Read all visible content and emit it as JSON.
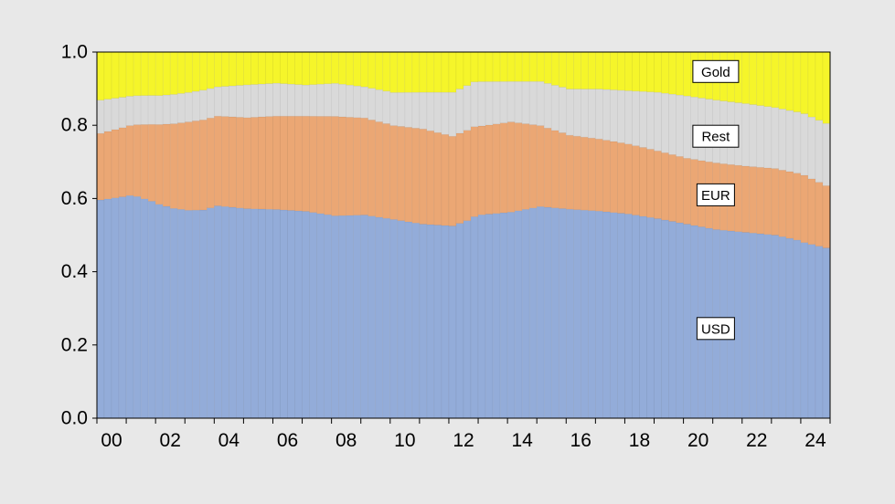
{
  "chart_data": {
    "type": "area",
    "stacking": "stacked",
    "style": "stacked-bars",
    "x_unit": "quarter",
    "x_start": "2000Q1",
    "x_end": "2024Q4",
    "ylim": [
      0,
      1
    ],
    "yticks": [
      {
        "value": 0.0,
        "label": "0.0"
      },
      {
        "value": 0.2,
        "label": "0.2"
      },
      {
        "value": 0.4,
        "label": "0.4"
      },
      {
        "value": 0.6,
        "label": "0.6"
      },
      {
        "value": 0.8,
        "label": "0.8"
      },
      {
        "value": 1.0,
        "label": "1.0"
      }
    ],
    "xticks": [
      {
        "year": 2000,
        "label": "00"
      },
      {
        "year": 2002,
        "label": "02"
      },
      {
        "year": 2004,
        "label": "04"
      },
      {
        "year": 2006,
        "label": "06"
      },
      {
        "year": 2008,
        "label": "08"
      },
      {
        "year": 2010,
        "label": "10"
      },
      {
        "year": 2012,
        "label": "12"
      },
      {
        "year": 2014,
        "label": "14"
      },
      {
        "year": 2016,
        "label": "16"
      },
      {
        "year": 2018,
        "label": "18"
      },
      {
        "year": 2020,
        "label": "20"
      },
      {
        "year": 2022,
        "label": "22"
      },
      {
        "year": 2024,
        "label": "24"
      }
    ],
    "grid": false,
    "legend": "inline-labels",
    "series": [
      {
        "name": "USD",
        "color": "#93acd9",
        "label_position": {
          "x_year": 2021.1,
          "y": 0.245
        },
        "anchors": [
          [
            2000.0,
            0.59
          ],
          [
            2000.75,
            0.6
          ],
          [
            2001.25,
            0.61
          ],
          [
            2001.75,
            0.6
          ],
          [
            2002.5,
            0.57
          ],
          [
            2003.5,
            0.56
          ],
          [
            2004.0,
            0.58
          ],
          [
            2005.0,
            0.575
          ],
          [
            2006.0,
            0.57
          ],
          [
            2007.0,
            0.565
          ],
          [
            2008.0,
            0.55
          ],
          [
            2009.0,
            0.555
          ],
          [
            2010.0,
            0.54
          ],
          [
            2011.0,
            0.53
          ],
          [
            2012.0,
            0.525
          ],
          [
            2012.5,
            0.53
          ],
          [
            2013.0,
            0.55
          ],
          [
            2014.0,
            0.56
          ],
          [
            2015.0,
            0.575
          ],
          [
            2016.0,
            0.565
          ],
          [
            2017.0,
            0.56
          ],
          [
            2018.0,
            0.555
          ],
          [
            2019.0,
            0.545
          ],
          [
            2020.0,
            0.53
          ],
          [
            2021.0,
            0.51
          ],
          [
            2022.0,
            0.505
          ],
          [
            2023.0,
            0.495
          ],
          [
            2023.75,
            0.48
          ],
          [
            2024.0,
            0.47
          ],
          [
            2024.75,
            0.465
          ]
        ]
      },
      {
        "name": "EUR",
        "color": "#eba774",
        "label_position": {
          "x_year": 2021.1,
          "y": 0.61
        },
        "anchors": [
          [
            2000.0,
            0.18
          ],
          [
            2001.0,
            0.19
          ],
          [
            2002.0,
            0.22
          ],
          [
            2003.0,
            0.24
          ],
          [
            2004.0,
            0.245
          ],
          [
            2005.0,
            0.25
          ],
          [
            2006.0,
            0.255
          ],
          [
            2007.0,
            0.26
          ],
          [
            2008.0,
            0.27
          ],
          [
            2009.0,
            0.265
          ],
          [
            2010.0,
            0.255
          ],
          [
            2011.0,
            0.26
          ],
          [
            2012.0,
            0.245
          ],
          [
            2013.0,
            0.24
          ],
          [
            2014.0,
            0.245
          ],
          [
            2015.0,
            0.22
          ],
          [
            2016.0,
            0.2
          ],
          [
            2017.0,
            0.195
          ],
          [
            2018.0,
            0.19
          ],
          [
            2019.0,
            0.185
          ],
          [
            2020.0,
            0.18
          ],
          [
            2021.0,
            0.18
          ],
          [
            2022.0,
            0.18
          ],
          [
            2023.0,
            0.18
          ],
          [
            2024.0,
            0.18
          ],
          [
            2024.75,
            0.17
          ]
        ]
      },
      {
        "name": "Rest",
        "color": "#d9d9d9",
        "label_position": {
          "x_year": 2021.1,
          "y": 0.77
        },
        "anchors": [
          [
            2000.0,
            0.09
          ],
          [
            2001.0,
            0.08
          ],
          [
            2002.0,
            0.08
          ],
          [
            2003.0,
            0.08
          ],
          [
            2004.0,
            0.08
          ],
          [
            2005.0,
            0.09
          ],
          [
            2006.0,
            0.09
          ],
          [
            2007.0,
            0.085
          ],
          [
            2008.0,
            0.09
          ],
          [
            2009.0,
            0.085
          ],
          [
            2010.0,
            0.09
          ],
          [
            2011.0,
            0.1
          ],
          [
            2012.0,
            0.12
          ],
          [
            2013.0,
            0.12
          ],
          [
            2014.0,
            0.11
          ],
          [
            2015.0,
            0.12
          ],
          [
            2016.0,
            0.125
          ],
          [
            2017.0,
            0.135
          ],
          [
            2018.0,
            0.145
          ],
          [
            2019.0,
            0.16
          ],
          [
            2020.0,
            0.17
          ],
          [
            2021.0,
            0.17
          ],
          [
            2022.0,
            0.17
          ],
          [
            2023.0,
            0.165
          ],
          [
            2024.0,
            0.165
          ],
          [
            2024.75,
            0.17
          ]
        ]
      },
      {
        "name": "Gold",
        "color": "#f5f52a",
        "label_position": {
          "x_year": 2021.1,
          "y": 0.947
        },
        "anchors": [
          [
            2000.0,
            0.13
          ],
          [
            2001.0,
            0.12
          ],
          [
            2002.0,
            0.12
          ],
          [
            2003.0,
            0.11
          ],
          [
            2004.0,
            0.095
          ],
          [
            2005.0,
            0.09
          ],
          [
            2006.0,
            0.085
          ],
          [
            2007.0,
            0.09
          ],
          [
            2008.0,
            0.085
          ],
          [
            2009.0,
            0.095
          ],
          [
            2010.0,
            0.11
          ],
          [
            2011.0,
            0.11
          ],
          [
            2012.0,
            0.11
          ],
          [
            2012.75,
            0.08
          ],
          [
            2014.0,
            0.08
          ],
          [
            2015.0,
            0.08
          ],
          [
            2016.0,
            0.1
          ],
          [
            2017.0,
            0.1
          ],
          [
            2018.0,
            0.105
          ],
          [
            2019.0,
            0.11
          ],
          [
            2020.0,
            0.12
          ],
          [
            2021.0,
            0.13
          ],
          [
            2022.0,
            0.14
          ],
          [
            2023.0,
            0.15
          ],
          [
            2024.0,
            0.165
          ],
          [
            2024.75,
            0.195
          ]
        ]
      }
    ]
  }
}
